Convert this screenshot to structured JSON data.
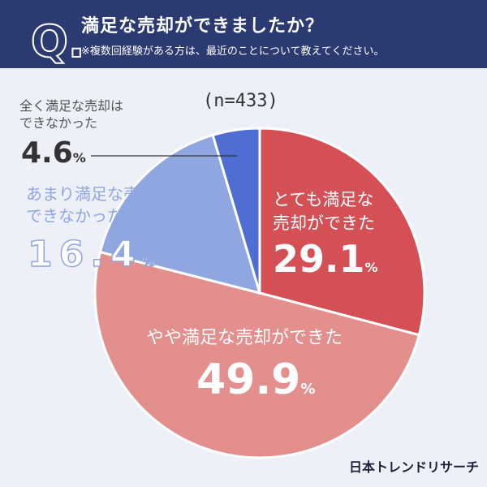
{
  "header": {
    "q_mark": "Q.",
    "question": "満足な売却ができましたか？",
    "note": "※複数回経験がある方は、最近のことについて教えてください。"
  },
  "sample": "(n=433)",
  "brand": "日本トレンドリサーチ",
  "colors": {
    "header_bg": "#2b3a70",
    "very_satisfied": "#d45055",
    "somewhat_satisfied": "#e38f8e",
    "not_very_satisfied": "#8fa6e1",
    "not_at_all_satisfied": "#4f6ed4"
  },
  "chart_data": {
    "type": "pie",
    "title": "満足な売却ができましたか？",
    "n": 433,
    "slices": [
      {
        "label": "とても満足な売却ができた",
        "label_lines": [
          "とても満足な",
          "売却ができた"
        ],
        "value": 29.1,
        "pct_text": "29.1",
        "color": "#d45055"
      },
      {
        "label": "やや満足な売却ができた",
        "label_lines": [
          "やや満足な売却ができた"
        ],
        "value": 49.9,
        "pct_text": "49.9",
        "color": "#e38f8e"
      },
      {
        "label": "あまり満足な売却はできなかった",
        "label_lines": [
          "あまり満足な売却は",
          "できなかった"
        ],
        "value": 16.4,
        "pct_text": "16.4",
        "color": "#8fa6e1"
      },
      {
        "label": "全く満足な売却はできなかった",
        "label_lines": [
          "全く満足な売却は",
          "できなかった"
        ],
        "value": 4.6,
        "pct_text": "4.6",
        "color": "#4f6ed4"
      }
    ],
    "unit": "%",
    "start": "12 o'clock",
    "direction": "clockwise"
  }
}
